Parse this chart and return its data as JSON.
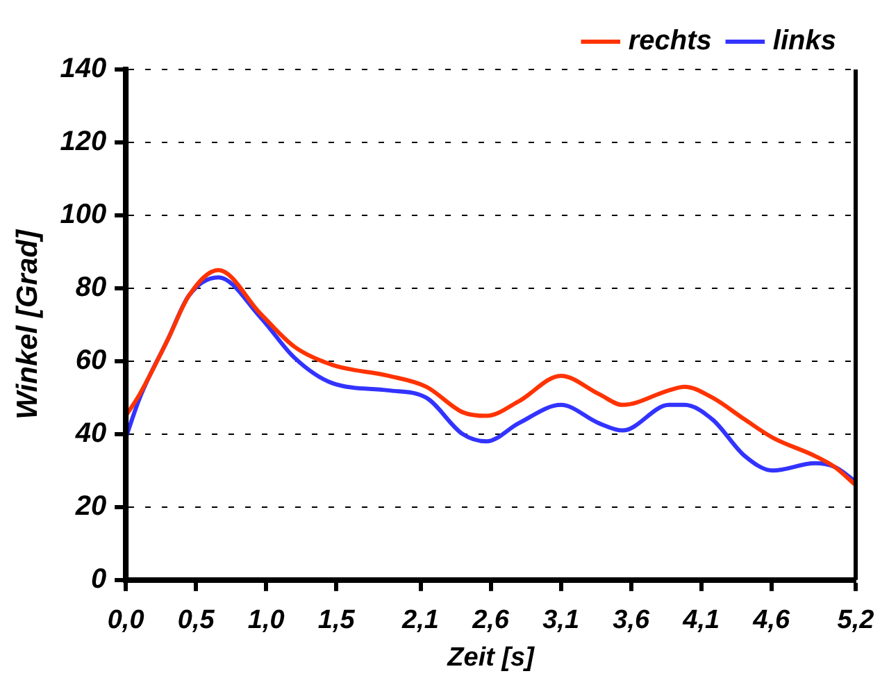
{
  "chart_data": {
    "type": "line",
    "xlabel": "Zeit [s]",
    "ylabel": "Winkel [Grad]",
    "xlim": [
      0,
      5.2
    ],
    "xticks": [
      {
        "value": 0,
        "label": "0,0"
      },
      {
        "value": 0.5,
        "label": "0,5"
      },
      {
        "value": 1.0,
        "label": "1,0"
      },
      {
        "value": 1.5,
        "label": "1,5"
      },
      {
        "value": 2.1,
        "label": "2,1"
      },
      {
        "value": 2.6,
        "label": "2,6"
      },
      {
        "value": 3.1,
        "label": "3,1"
      },
      {
        "value": 3.6,
        "label": "3,6"
      },
      {
        "value": 4.1,
        "label": "4,1"
      },
      {
        "value": 4.6,
        "label": "4,6"
      },
      {
        "value": 5.2,
        "label": "5,2"
      }
    ],
    "ylim": [
      0,
      140
    ],
    "yticks": [
      0,
      20,
      40,
      60,
      80,
      100,
      120,
      140
    ],
    "grid": "y",
    "legend": "top right",
    "marker": "none",
    "line_style": "solid",
    "series": [
      {
        "name": "rechts",
        "color": "#ff3300",
        "x": [
          0,
          0.1,
          0.3,
          0.45,
          0.66,
          0.96,
          1.2,
          1.47,
          1.87,
          2.14,
          2.4,
          2.57,
          2.8,
          3.1,
          3.37,
          3.54,
          3.87,
          3.98,
          4.18,
          4.41,
          4.61,
          4.91,
          5.05,
          5.2
        ],
        "values": [
          45,
          51,
          66,
          78,
          85,
          73,
          64,
          59,
          56,
          53,
          46,
          45,
          49,
          56,
          51,
          48,
          52,
          53,
          50,
          44,
          39,
          34,
          31,
          26
        ]
      },
      {
        "name": "links",
        "color": "#3333ff",
        "x": [
          0,
          0.1,
          0.3,
          0.45,
          0.66,
          0.96,
          1.2,
          1.47,
          1.87,
          2.14,
          2.4,
          2.57,
          2.8,
          3.1,
          3.37,
          3.54,
          3.87,
          3.98,
          4.18,
          4.41,
          4.61,
          4.91,
          5.05,
          5.2
        ],
        "values": [
          39,
          50,
          66,
          78,
          83,
          72,
          61,
          54,
          52,
          50,
          40,
          38,
          43,
          48,
          43,
          41,
          48,
          48,
          44,
          34,
          30,
          32,
          31,
          27
        ]
      }
    ]
  }
}
